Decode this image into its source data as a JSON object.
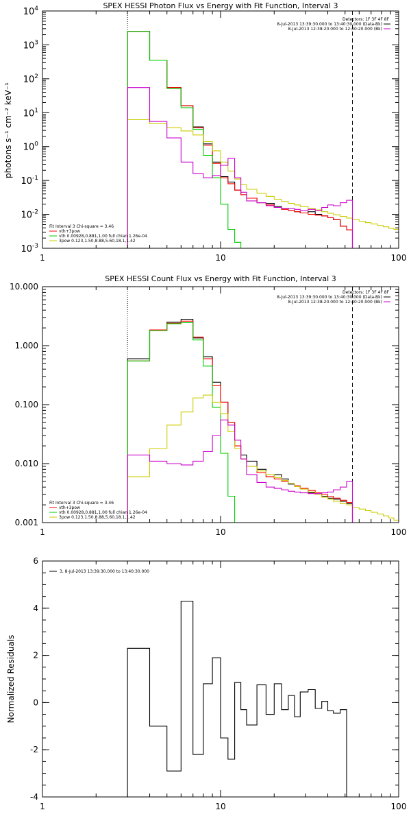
{
  "chart_data": [
    {
      "type": "line",
      "title": "SPEX HESSI Photon Flux vs Energy with Fit Function, Interval 3",
      "xlabel": "",
      "ylabel": "photons s⁻¹ cm⁻² keV⁻¹",
      "xscale": "log",
      "yscale": "log",
      "xlim": [
        1,
        100
      ],
      "ylim": [
        0.001,
        10000
      ],
      "xticks": [
        {
          "v": 1,
          "label": "1"
        },
        {
          "v": 10,
          "label": "10"
        },
        {
          "v": 100,
          "label": "100"
        }
      ],
      "yticks": [
        {
          "v": 0.001,
          "base": "10",
          "exp": "-3"
        },
        {
          "v": 0.01,
          "base": "10",
          "exp": "-2"
        },
        {
          "v": 0.1,
          "base": "10",
          "exp": "-1"
        },
        {
          "v": 1,
          "base": "10",
          "exp": "0"
        },
        {
          "v": 10,
          "base": "10",
          "exp": "1"
        },
        {
          "v": 100,
          "base": "10",
          "exp": "2"
        },
        {
          "v": 1000,
          "base": "10",
          "exp": "3"
        },
        {
          "v": 10000,
          "base": "10",
          "exp": "4"
        }
      ],
      "vlines": [
        {
          "x": 3,
          "style": "dotted"
        },
        {
          "x": 55,
          "style": "dashed"
        }
      ],
      "legend_topright": {
        "header": "Detectors: 1F 3F 4F 8F",
        "entries": [
          {
            "label": "8-Jul-2013 13:39:30.000 to 13:40:30.000 (Data-Bk)",
            "color": "#000000"
          },
          {
            "label": "8-Jul-2013 12:38:20.000 to 12:40:20.000 (Bk)",
            "color": "#cc00cc"
          }
        ]
      },
      "legend_bottomleft": {
        "header": "Fit Interval  3   Chi-square = 3.46",
        "entries": [
          {
            "label": "vth+3pow",
            "color": "#ff0000"
          },
          {
            "label": "vth 0.00928,0.881,1.00   full chian 1.26e-04",
            "color": "#00cc00"
          },
          {
            "label": "3pow 0.123,1.50,8.88,5.60,18.1,1.42",
            "color": "#cccc00"
          }
        ]
      },
      "edges": [
        3,
        4,
        5,
        6,
        7,
        8,
        9,
        10,
        11,
        12,
        13,
        14,
        16,
        18,
        20,
        22,
        24,
        26,
        28,
        31,
        34,
        37,
        40,
        43,
        47,
        51,
        55,
        60,
        65,
        70,
        76,
        82,
        88,
        94,
        100
      ],
      "series": [
        {
          "name": "Data-Bk",
          "color": "#000000",
          "nbins": 26,
          "values": [
            2500,
            350,
            55,
            16,
            3.8,
            1.2,
            0.35,
            0.13,
            0.09,
            0.052,
            0.038,
            0.03,
            0.022,
            0.021,
            0.017,
            0.015,
            0.013,
            0.012,
            0.011,
            0.012,
            0.01,
            0.009,
            0.008,
            0.007,
            0.0045,
            0.0035
          ]
        },
        {
          "name": "vth+3pow",
          "color": "#ff0000",
          "nbins": 26,
          "values": [
            2500,
            350,
            55,
            16,
            3.6,
            1.1,
            0.32,
            0.12,
            0.08,
            0.052,
            0.038,
            0.03,
            0.022,
            0.019,
            0.016,
            0.014,
            0.013,
            0.012,
            0.011,
            0.01,
            0.0095,
            0.009,
            0.008,
            0.007,
            0.0045,
            0.0035
          ]
        },
        {
          "name": "vth",
          "color": "#00cc00",
          "nbins": 14,
          "values": [
            2500,
            350,
            52,
            14,
            3.2,
            0.55,
            0.12,
            0.02,
            0.0036,
            0.0015,
            0.0004,
            0.0001,
            3e-05,
            1e-05
          ]
        },
        {
          "name": "3pow",
          "color": "#cccc00",
          "nbins": 34,
          "values": [
            6.2,
            4.7,
            3.6,
            2.9,
            2.2,
            1.4,
            0.75,
            0.35,
            0.19,
            0.11,
            0.075,
            0.055,
            0.042,
            0.034,
            0.028,
            0.024,
            0.021,
            0.019,
            0.017,
            0.015,
            0.0135,
            0.012,
            0.0108,
            0.0097,
            0.0087,
            0.0078,
            0.007,
            0.0063,
            0.0057,
            0.0052,
            0.0047,
            0.0043,
            0.0039,
            0.0036
          ]
        },
        {
          "name": "Bk",
          "color": "#cc00cc",
          "nbins": 26,
          "values": [
            55,
            5.5,
            1.8,
            0.35,
            0.16,
            0.12,
            0.14,
            0.28,
            0.45,
            0.12,
            0.045,
            0.025,
            0.022,
            0.018,
            0.016,
            0.015,
            0.015,
            0.014,
            0.013,
            0.014,
            0.013,
            0.016,
            0.019,
            0.018,
            0.022,
            0.026
          ]
        }
      ]
    },
    {
      "type": "line",
      "title": "SPEX HESSI Count Flux vs Energy with Fit Function, Interval 3",
      "xlabel": "",
      "ylabel": "",
      "xscale": "log",
      "yscale": "log",
      "xlim": [
        1,
        100
      ],
      "ylim": [
        0.001,
        10
      ],
      "xticks": [
        {
          "v": 1,
          "label": "1"
        },
        {
          "v": 10,
          "label": "10"
        },
        {
          "v": 100,
          "label": "100"
        }
      ],
      "yticks": [
        {
          "v": 0.001,
          "label": "0.001"
        },
        {
          "v": 0.01,
          "label": "0.010"
        },
        {
          "v": 0.1,
          "label": "0.100"
        },
        {
          "v": 1,
          "label": "1.000"
        },
        {
          "v": 10,
          "label": "10.000"
        }
      ],
      "vlines": [
        {
          "x": 3,
          "style": "dotted"
        },
        {
          "x": 55,
          "style": "dashed"
        }
      ],
      "legend_topright": {
        "header": "Detectors: 1F 3F 4F 8F",
        "entries": [
          {
            "label": "8-Jul-2013 13:39:30.000 to 13:40:30.000 (Data-Bk)",
            "color": "#000000"
          },
          {
            "label": "8-Jul-2013 12:38:20.000 to 12:40:20.000 (Bk)",
            "color": "#cc00cc"
          }
        ]
      },
      "legend_bottomleft": {
        "header": "Fit Interval  3   Chi-square = 3.46",
        "entries": [
          {
            "label": "vth+3pow",
            "color": "#ff0000"
          },
          {
            "label": "vth 0.00928,0.881,1.00   full chian 1.26e-04",
            "color": "#00cc00"
          },
          {
            "label": "3pow 0.123,1.50,8.88,5.60,18.1,1.42",
            "color": "#cccc00"
          }
        ]
      },
      "edges": [
        3,
        4,
        5,
        6,
        7,
        8,
        9,
        10,
        11,
        12,
        13,
        14,
        16,
        18,
        20,
        22,
        24,
        26,
        28,
        31,
        34,
        37,
        40,
        43,
        47,
        51,
        55,
        60,
        65,
        70,
        76,
        82,
        88,
        94,
        100
      ],
      "series": [
        {
          "name": "Data-Bk",
          "color": "#000000",
          "nbins": 26,
          "values": [
            0.6,
            1.8,
            2.5,
            2.8,
            1.35,
            0.65,
            0.24,
            0.11,
            0.05,
            0.02,
            0.014,
            0.011,
            0.008,
            0.006,
            0.0065,
            0.0055,
            0.0045,
            0.0042,
            0.0038,
            0.0032,
            0.003,
            0.0028,
            0.0026,
            0.0025,
            0.0023,
            0.0021
          ]
        },
        {
          "name": "vth+3pow",
          "color": "#ff0000",
          "nbins": 26,
          "values": [
            0.55,
            1.85,
            2.4,
            2.6,
            1.4,
            0.6,
            0.21,
            0.11,
            0.05,
            0.02,
            0.012,
            0.009,
            0.007,
            0.006,
            0.0055,
            0.005,
            0.0046,
            0.0042,
            0.0038,
            0.0035,
            0.0032,
            0.003,
            0.0028,
            0.0026,
            0.0024,
            0.0022
          ]
        },
        {
          "name": "vth",
          "color": "#00cc00",
          "nbins": 10,
          "values": [
            0.55,
            1.8,
            2.35,
            2.45,
            1.25,
            0.45,
            0.09,
            0.015,
            0.0028,
            0.0009
          ]
        },
        {
          "name": "3pow",
          "color": "#cccc00",
          "nbins": 34,
          "values": [
            0.006,
            0.018,
            0.045,
            0.075,
            0.13,
            0.145,
            0.11,
            0.07,
            0.035,
            0.018,
            0.012,
            0.009,
            0.0075,
            0.0065,
            0.0058,
            0.0052,
            0.0046,
            0.0041,
            0.0037,
            0.0033,
            0.003,
            0.0027,
            0.0025,
            0.0023,
            0.0021,
            0.002,
            0.0018,
            0.0017,
            0.0016,
            0.0015,
            0.0014,
            0.0013,
            0.0012,
            0.0011
          ]
        },
        {
          "name": "Bk",
          "color": "#cc00cc",
          "nbins": 26,
          "values": [
            0.014,
            0.011,
            0.01,
            0.0095,
            0.011,
            0.016,
            0.03,
            0.055,
            0.045,
            0.025,
            0.012,
            0.0065,
            0.0048,
            0.004,
            0.0038,
            0.0036,
            0.0034,
            0.0033,
            0.0032,
            0.0031,
            0.0031,
            0.0032,
            0.0033,
            0.0036,
            0.004,
            0.005
          ]
        }
      ]
    },
    {
      "type": "line",
      "title": "",
      "xlabel": "",
      "ylabel": "Normalized Residuals",
      "xscale": "log",
      "yscale": "linear",
      "xlim": [
        1,
        100
      ],
      "ylim": [
        -4,
        6
      ],
      "xticks": [
        {
          "v": 1,
          "label": "1"
        },
        {
          "v": 10,
          "label": "10"
        },
        {
          "v": 100,
          "label": "100"
        }
      ],
      "yticks": [
        {
          "v": -4,
          "label": "-4"
        },
        {
          "v": -2,
          "label": "-2"
        },
        {
          "v": 0,
          "label": "0"
        },
        {
          "v": 2,
          "label": "2"
        },
        {
          "v": 4,
          "label": "4"
        },
        {
          "v": 6,
          "label": "6"
        }
      ],
      "vlines": [],
      "legend_topleft": {
        "entries": [
          {
            "label": "3,  8-Jul-2013 13:39:30.000 to 13:40:30.000",
            "color": "#000000"
          }
        ]
      },
      "edges": [
        3,
        4,
        5,
        6,
        7,
        8,
        9,
        10,
        11,
        12,
        13,
        14,
        16,
        18,
        20,
        22,
        24,
        26,
        28,
        31,
        34,
        37,
        40,
        43,
        47,
        51,
        55
      ],
      "series": [
        {
          "name": "3,  8-Jul-2013 13:39:30.000 to 13:40:30.000",
          "color": "#000000",
          "nbins": 26,
          "values": [
            2.3,
            -1.0,
            -2.9,
            4.3,
            -2.2,
            0.8,
            1.9,
            -1.5,
            -2.4,
            0.85,
            -0.3,
            -0.95,
            0.75,
            -0.5,
            0.8,
            -0.3,
            0.3,
            -0.6,
            0.45,
            0.55,
            -0.25,
            0.05,
            -0.35,
            -0.45,
            -0.3,
            -4
          ]
        }
      ]
    }
  ]
}
